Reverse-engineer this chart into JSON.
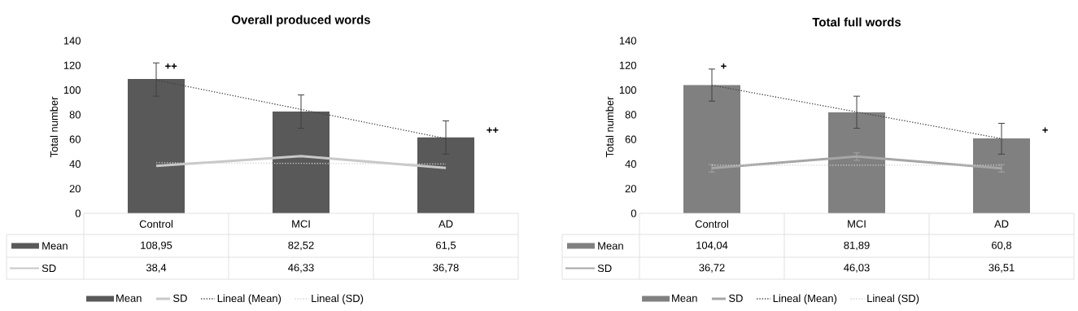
{
  "chart_data": [
    {
      "type": "bar",
      "title": "Overall produced words",
      "ylabel": "Total number",
      "categories": [
        "Control",
        "MCI",
        "AD"
      ],
      "ylim": [
        0,
        140
      ],
      "yticks": [
        0,
        20,
        40,
        60,
        80,
        100,
        120,
        140
      ],
      "marker": "none",
      "legend": "bottom",
      "series": [
        {
          "name": "Mean",
          "color": "#595959",
          "values": [
            108.95,
            82.52,
            61.5
          ],
          "errors": [
            [
              95,
              122
            ],
            [
              69,
              96
            ],
            [
              48,
              75
            ]
          ],
          "value_labels": [
            "108,95",
            "82,52",
            "61,5"
          ]
        },
        {
          "name": "SD",
          "type": "line",
          "line_style": "solid",
          "color": "#c8c8c8",
          "values": [
            38.4,
            46.33,
            36.78
          ],
          "value_labels": [
            "38,4",
            "46,33",
            "36,78"
          ]
        },
        {
          "name": "Lineal (Mean)",
          "type": "line",
          "line_style": "dotted",
          "color": "#404040",
          "values": [
            108,
            84.3,
            60.6
          ]
        },
        {
          "name": "Lineal (SD)",
          "type": "line",
          "line_style": "dotted",
          "color": "#d0d0d0",
          "values": [
            41,
            40.5,
            40
          ]
        }
      ],
      "annotations": [
        "++",
        "++"
      ]
    },
    {
      "type": "bar",
      "title": "Total full words",
      "ylabel": "Total number",
      "categories": [
        "Control",
        "MCI",
        "AD"
      ],
      "ylim": [
        0,
        140
      ],
      "yticks": [
        0,
        20,
        40,
        60,
        80,
        100,
        120,
        140
      ],
      "marker": "none",
      "legend": "bottom",
      "series": [
        {
          "name": "Mean",
          "color": "#808080",
          "values": [
            104.04,
            81.89,
            60.8
          ],
          "errors": [
            [
              91,
              117
            ],
            [
              69,
              95
            ],
            [
              48,
              73
            ]
          ],
          "value_labels": [
            "104,04",
            "81,89",
            "60,8"
          ]
        },
        {
          "name": "SD",
          "type": "line",
          "line_style": "solid",
          "color": "#a6a6a6",
          "values": [
            36.72,
            46.03,
            36.51
          ],
          "errors": [
            [
              33.5,
              39.5
            ],
            [
              43,
              49
            ],
            [
              33.5,
              39.5
            ]
          ],
          "value_labels": [
            "36,72",
            "46,03",
            "36,51"
          ]
        },
        {
          "name": "Lineal (Mean)",
          "type": "line",
          "line_style": "dotted",
          "color": "#404040",
          "values": [
            103.9,
            82.2,
            60.6
          ]
        },
        {
          "name": "Lineal (SD)",
          "type": "line",
          "line_style": "dotted",
          "color": "#d0d0d0",
          "values": [
            39,
            39,
            39
          ]
        }
      ],
      "annotations": [
        "+",
        "+"
      ]
    }
  ]
}
